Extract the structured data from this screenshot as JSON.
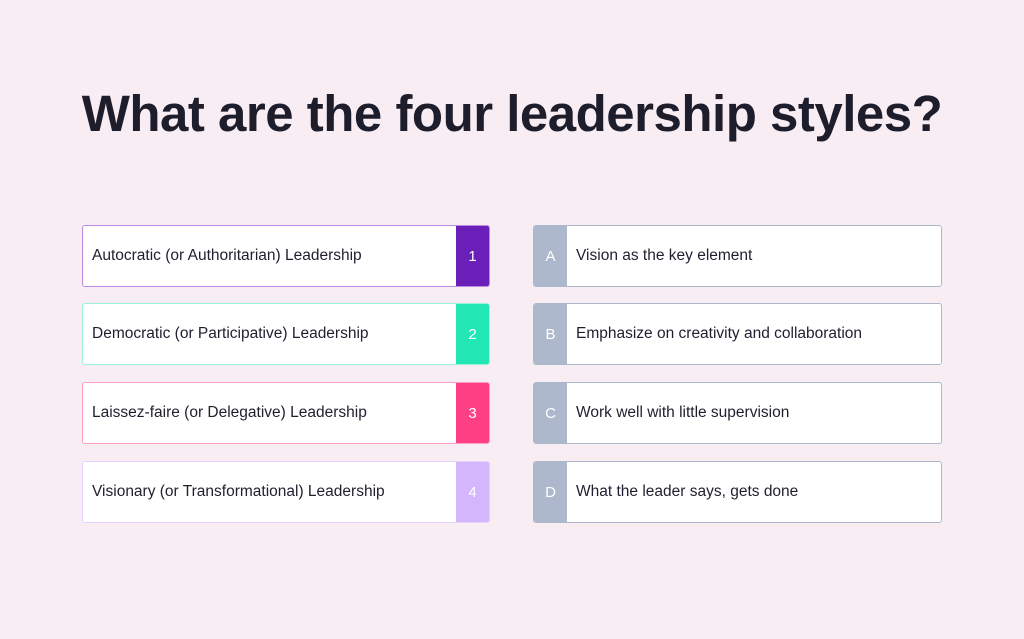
{
  "title": "What are the four leadership styles?",
  "styles": [
    {
      "label": "Autocratic (or Authoritarian) Leadership",
      "number": "1",
      "color": "#6a1fb8",
      "border": "#b58ce0"
    },
    {
      "label": "Democratic (or Participative) Leadership",
      "number": "2",
      "color": "#22e6b4",
      "border": "#9af0d8"
    },
    {
      "label": "Laissez-faire (or Delegative) Leadership",
      "number": "3",
      "color": "#ff3f84",
      "border": "#ff9fc0"
    },
    {
      "label": "Visionary (or Transformational) Leadership",
      "number": "4",
      "color": "#d3b6fb",
      "border": "#e4d2fc"
    }
  ],
  "traits": [
    {
      "letter": "A",
      "label": "Vision as the key element"
    },
    {
      "letter": "B",
      "label": "Emphasize on creativity and collaboration"
    },
    {
      "letter": "C",
      "label": "Work well with little supervision"
    },
    {
      "letter": "D",
      "label": "What the leader says, gets done"
    }
  ],
  "colors": {
    "background": "#f9edf4",
    "trait_badge": "#aeb8cc"
  }
}
